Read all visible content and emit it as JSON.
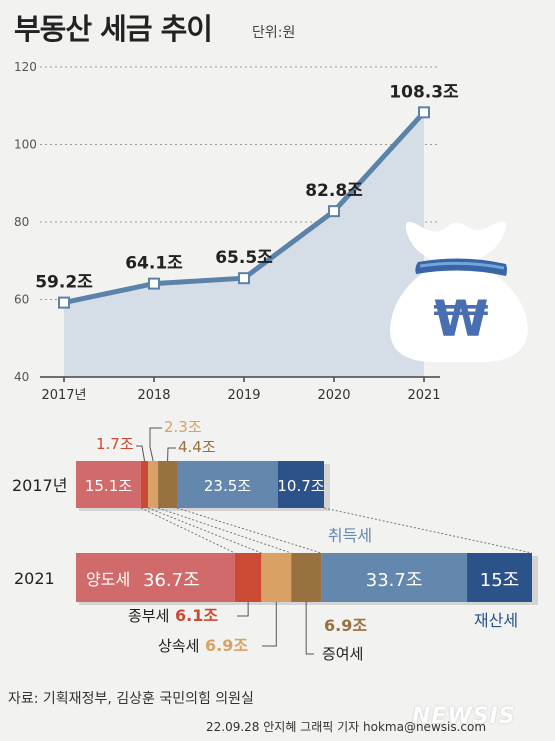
{
  "header": {
    "title": "부동산 세금 추이",
    "unit": "단위:원"
  },
  "chart_data": [
    {
      "type": "area",
      "title": "부동산 세금 추이",
      "unit": "단위:원",
      "x": [
        "2017년",
        "2018",
        "2019",
        "2020",
        "2021"
      ],
      "series": [
        {
          "values": [
            59.2,
            64.1,
            65.5,
            82.8,
            108.3
          ]
        }
      ],
      "data_labels": [
        "59.2조",
        "64.1조",
        "65.5조",
        "82.8조",
        "108.3조"
      ],
      "ylim": [
        40,
        120
      ],
      "yticks": [
        40,
        60,
        80,
        100,
        120
      ],
      "grid": true,
      "colors": {
        "line": "#5b82a8",
        "fill": "#d5dde6"
      }
    },
    {
      "type": "bar",
      "orientation": "horizontal",
      "stacked": true,
      "categories": [
        "2017년",
        "2021"
      ],
      "series": [
        {
          "name": "양도세",
          "values": [
            15.1,
            36.7
          ],
          "color": "#d16b6b"
        },
        {
          "name": "종부세",
          "values": [
            1.7,
            6.1
          ],
          "color": "#cc4a33"
        },
        {
          "name": "상속세",
          "values": [
            2.3,
            6.9
          ],
          "color": "#d9a264"
        },
        {
          "name": "증여세",
          "values": [
            4.4,
            6.9
          ],
          "color": "#99703f"
        },
        {
          "name": "취득세",
          "values": [
            23.5,
            33.7
          ],
          "color": "#6488ad"
        },
        {
          "name": "재산세",
          "values": [
            10.7,
            15
          ],
          "color": "#2b5289"
        }
      ],
      "labels_2017": {
        "inbar": [
          "15.1조",
          "23.5조",
          "10.7조"
        ],
        "above": [
          "1.7조",
          "2.3조",
          "4.4조"
        ]
      },
      "labels_2021": {
        "inbar": [
          "양도세",
          "36.7조",
          "33.7조",
          "15조"
        ],
        "callouts": [
          {
            "name": "종부세",
            "value": "6.1조"
          },
          {
            "name": "상속세",
            "value": "6.9조"
          },
          {
            "name": "증여세",
            "value": "6.9조"
          }
        ],
        "category_labels": {
          "취득세": "취득세",
          "재산세": "재산세"
        }
      }
    }
  ],
  "footer": {
    "source": "자료: 기획재정부, 김상훈 국민의힘 의원실",
    "credit": "22.09.28 안지혜 그래픽 기자 hokma@newsis.com",
    "watermark": "NEWSIS"
  },
  "icon": "money-bag-won-icon"
}
